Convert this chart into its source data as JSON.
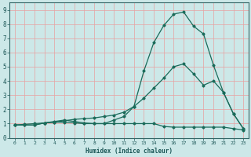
{
  "xlabel": "Humidex (Indice chaleur)",
  "bg_color": "#cce8e8",
  "grid_color_v": "#e8a0a0",
  "grid_color_h": "#e8a0a0",
  "line_color": "#1a6b5a",
  "xlim": [
    -0.5,
    23.5
  ],
  "ylim": [
    0,
    9.5
  ],
  "xticks": [
    0,
    1,
    2,
    3,
    4,
    5,
    6,
    7,
    8,
    9,
    10,
    11,
    12,
    13,
    14,
    15,
    16,
    17,
    18,
    19,
    20,
    21,
    22,
    23
  ],
  "yticks": [
    0,
    1,
    2,
    3,
    4,
    5,
    6,
    7,
    8,
    9
  ],
  "line1_x": [
    0,
    1,
    2,
    3,
    4,
    5,
    6,
    7,
    8,
    9,
    10,
    11,
    12,
    13,
    14,
    15,
    16,
    17,
    18,
    19,
    20,
    21,
    22,
    23
  ],
  "line1_y": [
    0.9,
    0.9,
    0.9,
    1.05,
    1.1,
    1.1,
    1.05,
    1.0,
    1.0,
    1.0,
    1.25,
    1.5,
    2.2,
    4.7,
    6.7,
    7.9,
    8.7,
    8.85,
    7.85,
    7.3,
    5.1,
    3.2,
    1.7,
    0.65
  ],
  "line2_x": [
    0,
    1,
    2,
    3,
    4,
    5,
    6,
    7,
    8,
    9,
    10,
    11,
    12,
    13,
    14,
    15,
    16,
    17,
    18,
    19,
    20,
    21,
    22,
    23
  ],
  "line2_y": [
    0.9,
    0.9,
    0.9,
    1.05,
    1.15,
    1.25,
    1.15,
    1.05,
    1.0,
    1.0,
    1.0,
    1.0,
    1.0,
    1.0,
    1.0,
    0.8,
    0.75,
    0.75,
    0.75,
    0.75,
    0.75,
    0.75,
    0.65,
    0.55
  ],
  "line3_x": [
    0,
    1,
    2,
    3,
    4,
    5,
    6,
    7,
    8,
    9,
    10,
    11,
    12,
    13,
    14,
    15,
    16,
    17,
    18,
    19,
    20,
    21,
    22,
    23
  ],
  "line3_y": [
    0.9,
    0.95,
    1.0,
    1.05,
    1.1,
    1.2,
    1.3,
    1.35,
    1.4,
    1.5,
    1.6,
    1.8,
    2.2,
    2.8,
    3.5,
    4.2,
    5.0,
    5.2,
    4.5,
    3.7,
    4.0,
    3.2,
    1.7,
    0.65
  ]
}
